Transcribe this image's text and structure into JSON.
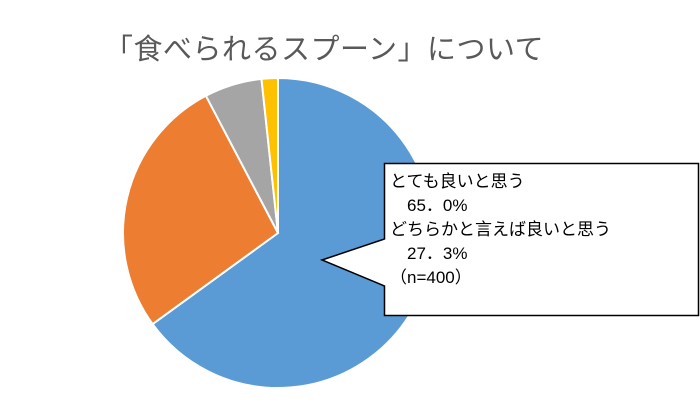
{
  "chart_data": {
    "type": "pie",
    "title": "「食べられるスプーン」について",
    "slices": [
      {
        "value": 65.0,
        "color": "#5B9BD5"
      },
      {
        "value": 27.3,
        "color": "#ED7D31"
      },
      {
        "value": 6.0,
        "color": "#A5A5A5"
      },
      {
        "value": 1.7,
        "color": "#FFC000"
      }
    ],
    "start_angle": "top",
    "direction": "clockwise",
    "legend": "none",
    "callout": {
      "line1": "とても良いと思う",
      "line2": "　65．0%",
      "line3": "どちらかと言えば良いと思う",
      "line4": "　27．3%",
      "line5": "（n=400）"
    }
  }
}
